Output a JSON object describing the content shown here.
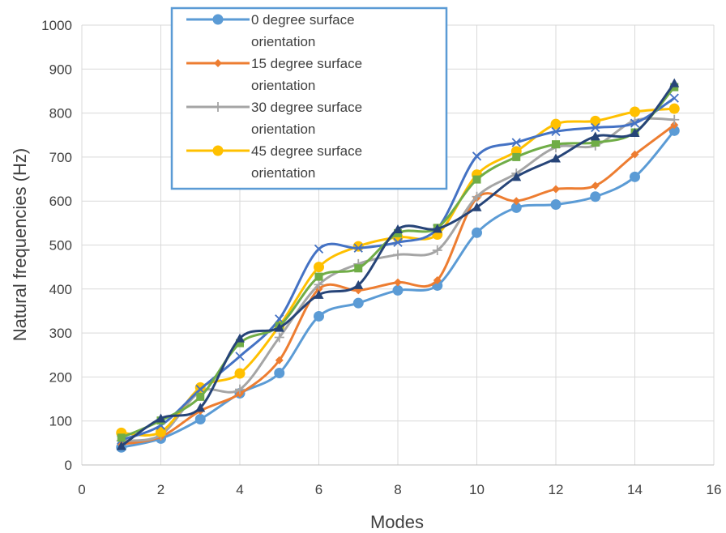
{
  "chart_data": {
    "type": "line",
    "title": "",
    "xlabel": "Modes",
    "ylabel": "Natural frequencies (Hz)",
    "xlim": [
      0,
      16
    ],
    "ylim": [
      0,
      1000
    ],
    "x_ticks": [
      0,
      2,
      4,
      6,
      8,
      10,
      12,
      14,
      16
    ],
    "y_ticks": [
      0,
      100,
      200,
      300,
      400,
      500,
      600,
      700,
      800,
      900,
      1000
    ],
    "grid": true,
    "smooth": true,
    "legend_position": "top-center",
    "x": [
      1,
      2,
      3,
      4,
      5,
      6,
      7,
      8,
      9,
      10,
      11,
      12,
      13,
      14,
      15
    ],
    "series": [
      {
        "name": "0 degree surface orientation",
        "color": "#5B9BD5",
        "marker": "circle",
        "values": [
          40,
          60,
          104,
          163,
          209,
          338,
          368,
          397,
          408,
          528,
          585,
          592,
          610,
          655,
          760
        ]
      },
      {
        "name": "15 degree surface orientation",
        "color": "#ED7D31",
        "marker": "diamond",
        "values": [
          47,
          64,
          123,
          162,
          238,
          400,
          397,
          415,
          420,
          607,
          600,
          627,
          635,
          706,
          773
        ]
      },
      {
        "name": "30 degree surface orientation",
        "color": "#A5A5A5",
        "marker": "plus",
        "values": [
          55,
          68,
          167,
          172,
          290,
          410,
          457,
          478,
          488,
          610,
          663,
          722,
          726,
          783,
          785
        ]
      },
      {
        "name": "45 degree surface orientation",
        "color": "#FFC000",
        "marker": "circle",
        "values": [
          73,
          75,
          176,
          208,
          316,
          450,
          497,
          518,
          524,
          660,
          713,
          775,
          782,
          803,
          810
        ]
      },
      {
        "name": "",
        "color": "#4472C4",
        "marker": "x",
        "values": [
          57,
          90,
          172,
          247,
          332,
          491,
          493,
          506,
          537,
          702,
          733,
          758,
          767,
          777,
          834
        ]
      },
      {
        "name": "",
        "color": "#70AD47",
        "marker": "square",
        "values": [
          62,
          101,
          155,
          277,
          316,
          428,
          447,
          527,
          539,
          649,
          700,
          729,
          733,
          756,
          859
        ]
      },
      {
        "name": "",
        "color": "#264478",
        "marker": "triangle",
        "values": [
          43,
          106,
          130,
          288,
          312,
          387,
          409,
          536,
          537,
          586,
          655,
          697,
          747,
          755,
          868
        ]
      }
    ]
  }
}
